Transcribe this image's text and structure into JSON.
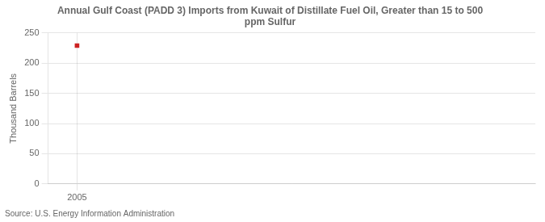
{
  "chart_data": {
    "type": "scatter",
    "title": "Annual Gulf Coast (PADD 3) Imports from Kuwait of Distillate Fuel Oil, Greater than 15 to 500\nppm Sulfur",
    "ylabel": "Thousand Barrels",
    "source": "Source: U.S. Energy Information Administration",
    "x": [
      2005
    ],
    "values": [
      229
    ],
    "color": "#cc2222",
    "marker": "square",
    "xlim": [
      2004.4,
      2014.5
    ],
    "xticks": [
      2005
    ],
    "ylim": [
      0,
      250
    ],
    "yticks": [
      0,
      50,
      100,
      150,
      200,
      250
    ],
    "grid": true
  }
}
